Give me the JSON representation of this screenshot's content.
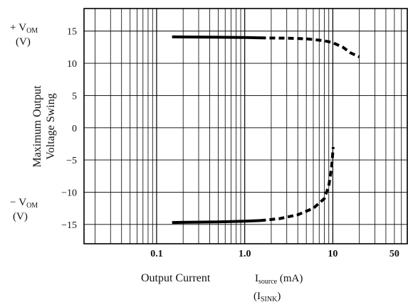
{
  "chart_data": {
    "type": "line",
    "title": "",
    "xlabel": "Output Current",
    "xlabel_symbol": {
      "main": "I",
      "sub": "source"
    },
    "xlabel_unit": "(mA)",
    "xlabel_alt": {
      "main": "I",
      "sub": "SINK",
      "open": "(",
      "close": ")"
    },
    "ylabel": [
      "Maximum Output",
      "Voltage Swing"
    ],
    "y_top_label": {
      "sign": "+",
      "main": "V",
      "sub": "OM",
      "unit": "(V)"
    },
    "y_bottom_label": {
      "sign": "−",
      "main": "V",
      "sub": "OM",
      "unit": "(V)"
    },
    "xscale": "log",
    "xlim": [
      0.015,
      70
    ],
    "ylim": [
      -18,
      18.5
    ],
    "x_ticks": [
      {
        "value": 0.1,
        "label": "0.1"
      },
      {
        "value": 1,
        "label": "1.0"
      },
      {
        "value": 10,
        "label": "10"
      },
      {
        "value": 50,
        "label": "50"
      }
    ],
    "y_ticks": [
      {
        "value": 15,
        "label": "15"
      },
      {
        "value": 10,
        "label": "10"
      },
      {
        "value": 5,
        "label": "5"
      },
      {
        "value": 0,
        "label": "0"
      },
      {
        "value": -5,
        "label": "−5"
      },
      {
        "value": -10,
        "label": "−10"
      },
      {
        "value": -15,
        "label": "−15"
      }
    ],
    "grid": true,
    "series": [
      {
        "segments": [
          {
            "style": "solid",
            "points": [
              [
                0.15,
                14.1
              ],
              [
                0.5,
                14.05
              ],
              [
                1,
                14.0
              ],
              [
                1.5,
                13.95
              ]
            ]
          },
          {
            "style": "dashed",
            "points": [
              [
                1.5,
                13.95
              ],
              [
                3,
                13.9
              ],
              [
                5,
                13.8
              ],
              [
                8,
                13.5
              ],
              [
                10,
                13.2
              ],
              [
                13,
                12.5
              ],
              [
                16,
                11.6
              ],
              [
                20,
                11.0
              ]
            ]
          }
        ]
      },
      {
        "segments": [
          {
            "style": "solid",
            "points": [
              [
                0.15,
                -14.7
              ],
              [
                0.5,
                -14.6
              ],
              [
                1,
                -14.5
              ],
              [
                1.5,
                -14.4
              ]
            ]
          },
          {
            "style": "dashed",
            "points": [
              [
                1.5,
                -14.4
              ],
              [
                2.5,
                -14.1
              ],
              [
                4,
                -13.5
              ],
              [
                6,
                -12.5
              ],
              [
                8,
                -11
              ],
              [
                9,
                -9
              ],
              [
                9.7,
                -6
              ],
              [
                10.1,
                -3
              ]
            ]
          }
        ]
      }
    ]
  }
}
